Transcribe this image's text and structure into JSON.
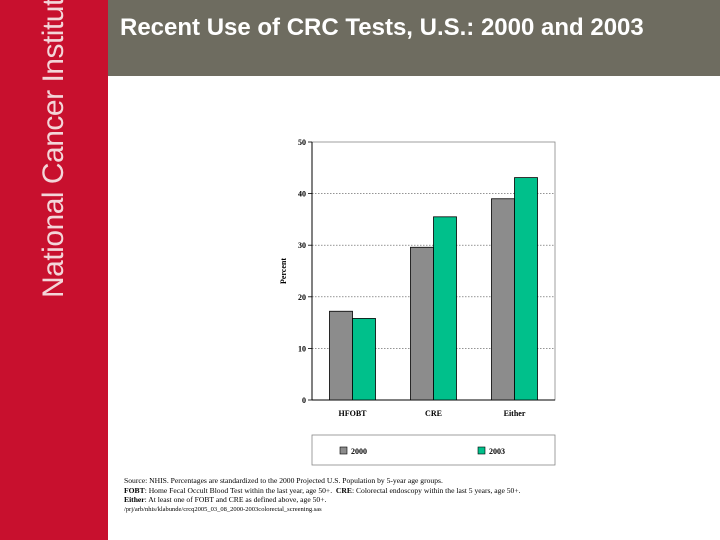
{
  "sidebar": {
    "org_name": "National Cancer Institute"
  },
  "header": {
    "title": "Recent Use of CRC Tests, U.S.: 2000 and 2003"
  },
  "colors": {
    "sidebar": "#c8102e",
    "header": "#6e6c60",
    "series_2000": "#8c8c8c",
    "series_2003": "#00c08b"
  },
  "chart_data": {
    "type": "bar",
    "categories": [
      "HFOBT",
      "CRE",
      "Either"
    ],
    "series": [
      {
        "name": "2000",
        "values": [
          17.2,
          29.6,
          39.0
        ],
        "color": "#8c8c8c"
      },
      {
        "name": "2003",
        "values": [
          15.8,
          35.5,
          43.1
        ],
        "color": "#00c08b"
      }
    ],
    "ylabel": "Percent",
    "ylim": [
      0,
      50
    ],
    "yticks": [
      0,
      10,
      20,
      30,
      40,
      50
    ],
    "grid": true,
    "legend_position": "bottom"
  },
  "notes": {
    "source_label": "Source:",
    "source_text": "NHIS. Percentages are standardized to the 2000 Projected U.S. Population by 5-year age groups.",
    "fobt_label": "FOBT",
    "fobt_text": ": Home Fecal Occult Blood Test within the last year, age 50+.",
    "cre_label": "CRE",
    "cre_text": ": Colorectal endoscopy within the last 5 years, age 50+.",
    "either_label": "Either",
    "either_text": ": At least one of FOBT and CRE as defined above, age 50+.",
    "path": "/prj/arb/nhis/klabunde/crcq2005_03_08_2000-2003colorectal_screening.sas"
  }
}
